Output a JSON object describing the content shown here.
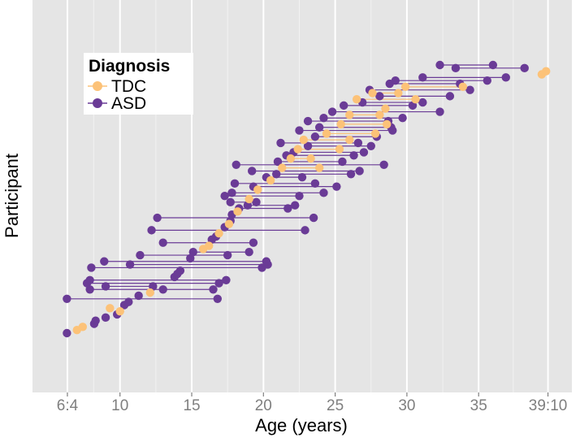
{
  "colors": {
    "panel_bg": "#e5e5e5",
    "grid_major": "#ffffff",
    "grid_minor": "#f2f2f2",
    "TDC": "#fcc278",
    "ASD": "#6a3b96"
  },
  "chart_data": {
    "type": "scatter",
    "subtype": "longitudinal dot-and-line (one row per participant)",
    "xlabel": "Age (years)",
    "ylabel": "Participant",
    "xlim": [
      3.9,
      41.5
    ],
    "x_ticks": [
      {
        "value": 6.333,
        "label": "6:4"
      },
      {
        "value": 10,
        "label": "10"
      },
      {
        "value": 15,
        "label": "15"
      },
      {
        "value": 20,
        "label": "20"
      },
      {
        "value": 25,
        "label": "25"
      },
      {
        "value": 30,
        "label": "30"
      },
      {
        "value": 35,
        "label": "35"
      },
      {
        "value": 39.833,
        "label": "39:10"
      }
    ],
    "y_ticks": "none",
    "grid": true,
    "legend": {
      "title": "Diagnosis",
      "position": "top-left",
      "entries": [
        {
          "key": "TDC",
          "label": "TDC"
        },
        {
          "key": "ASD",
          "label": "ASD"
        }
      ]
    },
    "series": [
      {
        "name": "TDC",
        "participants": [
          {
            "row": 2,
            "ages": [
              7.0
            ]
          },
          {
            "row": 3,
            "ages": [
              7.4
            ]
          },
          {
            "row": 8,
            "ages": [
              10.0
            ]
          },
          {
            "row": 9,
            "ages": [
              9.3
            ]
          },
          {
            "row": 14,
            "ages": [
              12.1
            ]
          },
          {
            "row": 28,
            "ages": [
              15.8
            ]
          },
          {
            "row": 29,
            "ages": [
              16.2
            ]
          },
          {
            "row": 33,
            "ages": [
              16.9
            ]
          },
          {
            "row": 36,
            "ages": [
              17.6
            ]
          },
          {
            "row": 40,
            "ages": [
              18.2
            ]
          },
          {
            "row": 44,
            "ages": [
              19.0
            ]
          },
          {
            "row": 47,
            "ages": [
              19.6
            ]
          },
          {
            "row": 50,
            "ages": [
              20.5
            ]
          },
          {
            "row": 54,
            "ages": [
              21.3,
              23.9
            ]
          },
          {
            "row": 57,
            "ages": [
              21.9,
              23.3
            ]
          },
          {
            "row": 60,
            "ages": [
              22.4,
              25.3
            ]
          },
          {
            "row": 63,
            "ages": [
              22.8,
              26.0
            ]
          },
          {
            "row": 65,
            "ages": [
              24.4,
              27.8
            ]
          },
          {
            "row": 68,
            "ages": [
              25.4,
              28.6
            ]
          },
          {
            "row": 71,
            "ages": [
              26.0,
              28.1
            ]
          },
          {
            "row": 73,
            "ages": [
              28.5
            ]
          },
          {
            "row": 76,
            "ages": [
              26.5,
              30.6
            ]
          },
          {
            "row": 78,
            "ages": [
              27.6,
              29.4
            ]
          },
          {
            "row": 80,
            "ages": [
              29.9,
              33.9
            ]
          },
          {
            "row": 84,
            "ages": [
              39.4
            ]
          },
          {
            "row": 85,
            "ages": [
              39.7
            ]
          }
        ]
      },
      {
        "name": "ASD",
        "participants": [
          {
            "row": 1,
            "ages": [
              6.3
            ]
          },
          {
            "row": 4,
            "ages": [
              8.2
            ]
          },
          {
            "row": 5,
            "ages": [
              8.3
            ]
          },
          {
            "row": 6,
            "ages": [
              9.0
            ]
          },
          {
            "row": 7,
            "ages": [
              9.8
            ]
          },
          {
            "row": 10,
            "ages": [
              10.3
            ]
          },
          {
            "row": 11,
            "ages": [
              10.6
            ]
          },
          {
            "row": 12,
            "ages": [
              6.3,
              16.8
            ]
          },
          {
            "row": 13,
            "ages": [
              11.3
            ]
          },
          {
            "row": 15,
            "ages": [
              7.9,
              13.0,
              16.5
            ]
          },
          {
            "row": 16,
            "ages": [
              9.0,
              12.3
            ]
          },
          {
            "row": 17,
            "ages": [
              7.7,
              16.9
            ]
          },
          {
            "row": 18,
            "ages": [
              7.9,
              17.4
            ]
          },
          {
            "row": 19,
            "ages": [
              13.8
            ]
          },
          {
            "row": 20,
            "ages": [
              14.0
            ]
          },
          {
            "row": 21,
            "ages": [
              14.2
            ]
          },
          {
            "row": 22,
            "ages": [
              8.0,
              19.9
            ]
          },
          {
            "row": 23,
            "ages": [
              10.7,
              20.3
            ]
          },
          {
            "row": 24,
            "ages": [
              8.9,
              20.2
            ]
          },
          {
            "row": 25,
            "ages": [
              14.9
            ]
          },
          {
            "row": 26,
            "ages": [
              11.4,
              17.5
            ]
          },
          {
            "row": 27,
            "ages": [
              15.1,
              19.0
            ]
          },
          {
            "row": 30,
            "ages": [
              13.0,
              19.3
            ]
          },
          {
            "row": 31,
            "ages": [
              16.4
            ]
          },
          {
            "row": 32,
            "ages": [
              16.7
            ]
          },
          {
            "row": 34,
            "ages": [
              12.2,
              22.9
            ]
          },
          {
            "row": 35,
            "ages": [
              17.3
            ]
          },
          {
            "row": 37,
            "ages": [
              17.7
            ]
          },
          {
            "row": 38,
            "ages": [
              12.6,
              23.5
            ]
          },
          {
            "row": 39,
            "ages": [
              17.8
            ]
          },
          {
            "row": 41,
            "ages": [
              18.3,
              21.7
            ]
          },
          {
            "row": 42,
            "ages": [
              18.9,
              22.2
            ]
          },
          {
            "row": 43,
            "ages": [
              17.7,
              19.5
            ]
          },
          {
            "row": 45,
            "ages": [
              17.3,
              22.5
            ]
          },
          {
            "row": 46,
            "ages": [
              17.8,
              24.2
            ]
          },
          {
            "row": 48,
            "ages": [
              19.3,
              25.1
            ]
          },
          {
            "row": 49,
            "ages": [
              18.0,
              23.6
            ]
          },
          {
            "row": 51,
            "ages": [
              20.2,
              22.7
            ]
          },
          {
            "row": 52,
            "ages": [
              20.9,
              26.1
            ]
          },
          {
            "row": 53,
            "ages": [
              19.2,
              26.7
            ]
          },
          {
            "row": 55,
            "ages": [
              18.1,
              28.4
            ]
          },
          {
            "row": 56,
            "ages": [
              21.0,
              25.5
            ]
          },
          {
            "row": 58,
            "ages": [
              21.6,
              26.3
            ]
          },
          {
            "row": 59,
            "ages": [
              22.1,
              27.0
            ]
          },
          {
            "row": 61,
            "ages": [
              23.1,
              27.5
            ]
          },
          {
            "row": 62,
            "ages": [
              21.2,
              26.6
            ]
          },
          {
            "row": 64,
            "ages": [
              23.6,
              27.9
            ]
          },
          {
            "row": 66,
            "ages": [
              22.5,
              29.0
            ]
          },
          {
            "row": 67,
            "ages": [
              23.9,
              28.9
            ]
          },
          {
            "row": 69,
            "ages": [
              23.1,
              28.7
            ]
          },
          {
            "row": 70,
            "ages": [
              24.2,
              29.7
            ]
          },
          {
            "row": 72,
            "ages": [
              24.8,
              32.3
            ]
          },
          {
            "row": 74,
            "ages": [
              25.6,
              30.4
            ]
          },
          {
            "row": 75,
            "ages": [
              26.9,
              31.1
            ]
          },
          {
            "row": 77,
            "ages": [
              28.1,
              33.0
            ]
          },
          {
            "row": 79,
            "ages": [
              27.4,
              34.4
            ]
          },
          {
            "row": 81,
            "ages": [
              28.8,
              33.7
            ]
          },
          {
            "row": 82,
            "ages": [
              29.2,
              35.6
            ]
          },
          {
            "row": 83,
            "ages": [
              31.1,
              36.9
            ]
          },
          {
            "row": 86,
            "ages": [
              33.4,
              38.2
            ]
          },
          {
            "row": 87,
            "ages": [
              32.3,
              36.0
            ]
          }
        ]
      }
    ]
  }
}
